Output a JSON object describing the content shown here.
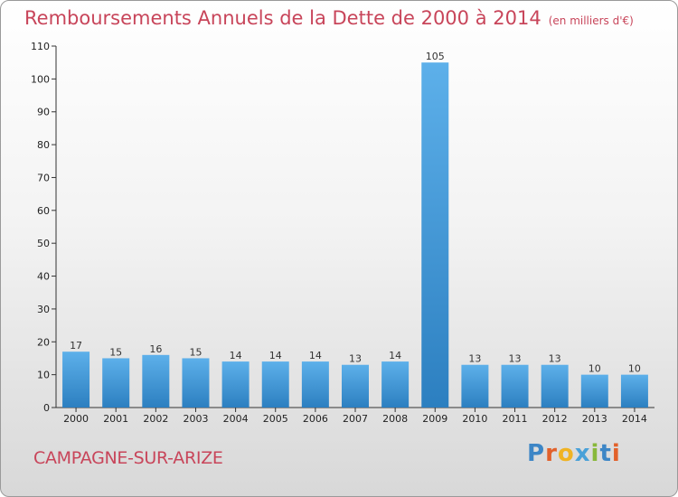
{
  "title": "Remboursements Annuels de la Dette de 2000 à 2014",
  "unit_note": "(en milliers d'€)",
  "commune": "CAMPAGNE-SUR-ARIZE",
  "logo_text": "Proxiti",
  "colors": {
    "title": "#c8455a",
    "bar_light": "#5db0ea",
    "bar_dark": "#2c7fc0"
  },
  "chart_data": {
    "type": "bar",
    "title": "Remboursements Annuels de la Dette de 2000 à 2014",
    "xlabel": "",
    "ylabel": "",
    "categories": [
      "2000",
      "2001",
      "2002",
      "2003",
      "2004",
      "2005",
      "2006",
      "2007",
      "2008",
      "2009",
      "2010",
      "2011",
      "2012",
      "2013",
      "2014"
    ],
    "values": [
      17,
      15,
      16,
      15,
      14,
      14,
      14,
      13,
      14,
      105,
      13,
      13,
      13,
      10,
      10
    ],
    "ylim": [
      0,
      110
    ],
    "yticks": [
      0,
      10,
      20,
      30,
      40,
      50,
      60,
      70,
      80,
      90,
      100,
      110
    ],
    "grid": false,
    "data_labels": true
  }
}
